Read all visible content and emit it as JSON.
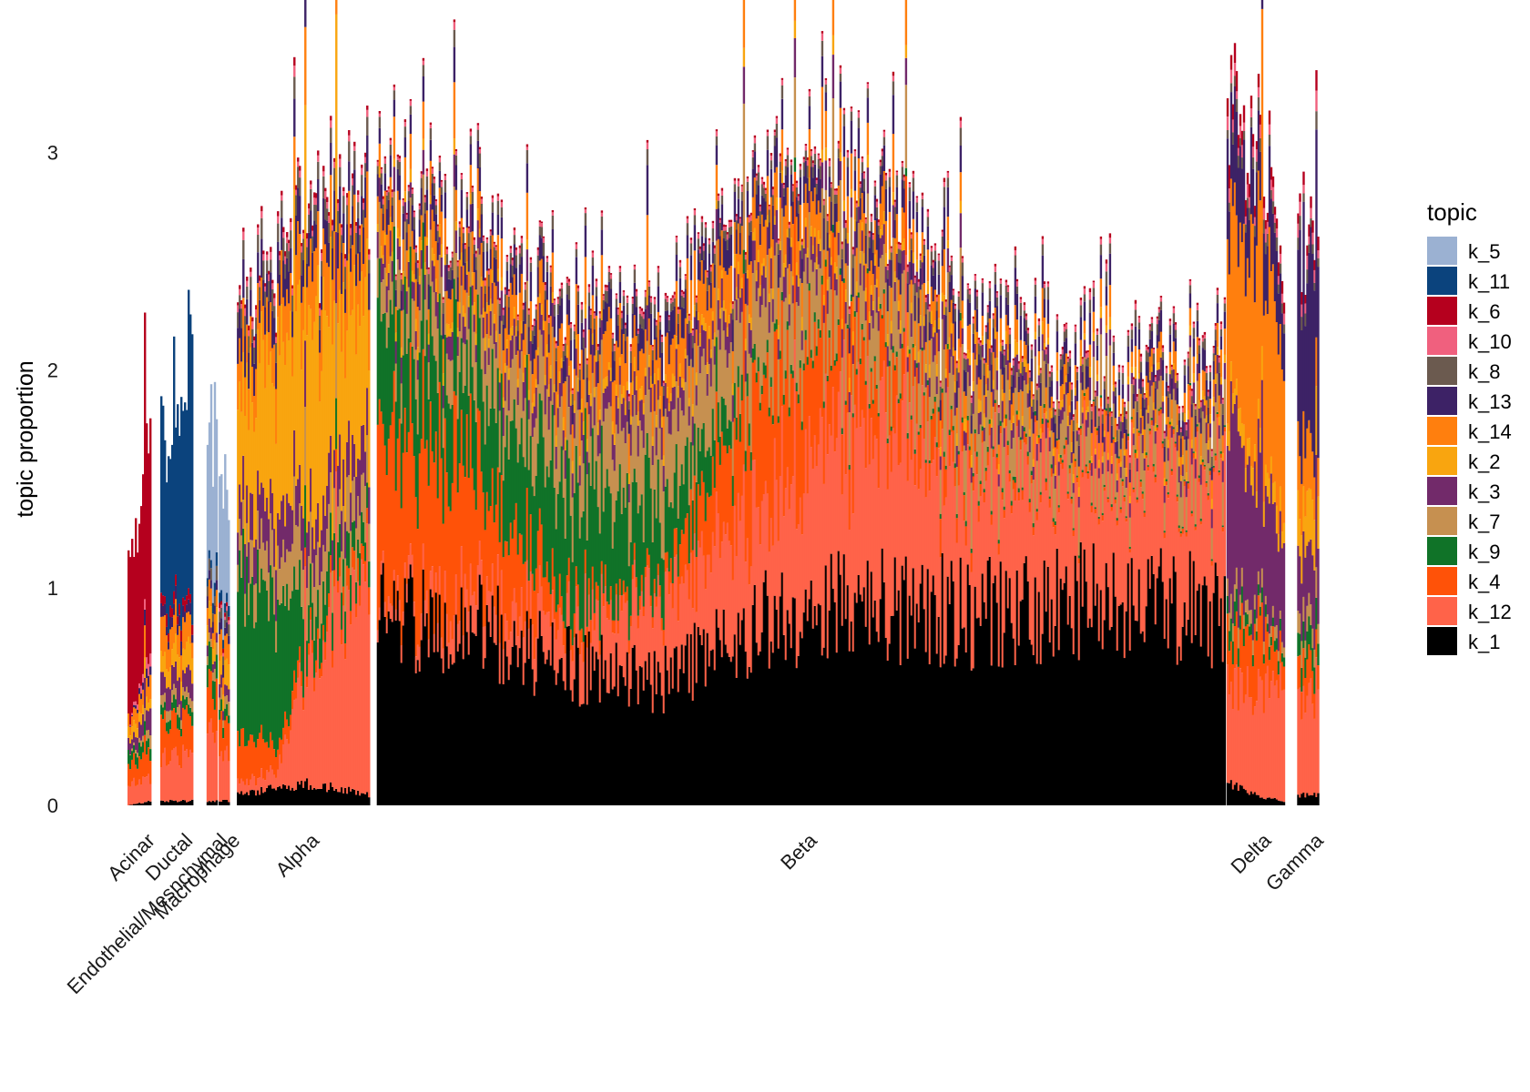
{
  "chart_data": {
    "type": "bar",
    "subtype": "stacked-bar-structure-plot",
    "title": "",
    "xlabel": "",
    "ylabel": "topic proportion",
    "ylim": [
      0,
      3.45
    ],
    "y_ticks": [
      "0",
      "1",
      "2",
      "3"
    ],
    "y_tick_values": [
      0,
      1,
      2,
      3
    ],
    "grid": false,
    "legend_title": "topic",
    "legend_position": "right",
    "legend": [
      {
        "name": "k_5",
        "color": "#9BB1D2"
      },
      {
        "name": "k_11",
        "color": "#0B437D"
      },
      {
        "name": "k_6",
        "color": "#B5001E"
      },
      {
        "name": "k_10",
        "color": "#F0607E"
      },
      {
        "name": "k_8",
        "color": "#6B5A4F"
      },
      {
        "name": "k_13",
        "color": "#3D2266"
      },
      {
        "name": "k_14",
        "color": "#FF7F0E"
      },
      {
        "name": "k_2",
        "color": "#F9A50F"
      },
      {
        "name": "k_3",
        "color": "#722A6A"
      },
      {
        "name": "k_7",
        "color": "#C69050"
      },
      {
        "name": "k_9",
        "color": "#107328"
      },
      {
        "name": "k_4",
        "color": "#FF5208"
      },
      {
        "name": "k_12",
        "color": "#FF6349"
      },
      {
        "name": "k_1",
        "color": "#000000"
      }
    ],
    "categories": [
      "Acinar",
      "Ductal",
      "Endothelial/Mesnchymal",
      "Macrophage",
      "Alpha",
      "Beta",
      "Delta",
      "Gamma"
    ],
    "groups": [
      {
        "name": "Acinar",
        "x_start": 0.0,
        "x_end": 0.02,
        "profile": [
          {
            "x": 0,
            "v": [
              0,
              0,
              0.6,
              0,
              0,
              0,
              0.05,
              0.05,
              0.05,
              0,
              0.05,
              0.1,
              0.1,
              0
            ]
          },
          {
            "x": 1,
            "v": [
              0,
              0,
              1.2,
              0.05,
              0,
              0.05,
              0.1,
              0.05,
              0.1,
              0.05,
              0.05,
              0.1,
              0.1,
              0.02
            ]
          }
        ]
      },
      {
        "name": "Ductal",
        "x_start": 0.027,
        "x_end": 0.055,
        "profile": [
          {
            "x": 0,
            "v": [
              0,
              0.7,
              0.05,
              0,
              0,
              0.05,
              0.15,
              0.1,
              0.1,
              0.05,
              0.05,
              0.2,
              0.2,
              0.02
            ]
          },
          {
            "x": 1,
            "v": [
              0,
              1.2,
              0.05,
              0,
              0,
              0.05,
              0.1,
              0.1,
              0.1,
              0.05,
              0.05,
              0.15,
              0.2,
              0.02
            ]
          }
        ]
      },
      {
        "name": "Endothelial/Mesnchymal",
        "x_start": 0.065,
        "x_end": 0.075,
        "profile": [
          {
            "x": 0,
            "v": [
              0.8,
              0.05,
              0,
              0,
              0.05,
              0.05,
              0.1,
              0.1,
              0.05,
              0.05,
              0.1,
              0.2,
              0.3,
              0.02
            ]
          },
          {
            "x": 1,
            "v": [
              0.7,
              0.05,
              0,
              0,
              0.05,
              0.05,
              0.1,
              0.1,
              0.05,
              0.05,
              0.1,
              0.2,
              0.3,
              0.02
            ]
          }
        ]
      },
      {
        "name": "Macrophage",
        "x_start": 0.075,
        "x_end": 0.085,
        "profile": [
          {
            "x": 0,
            "v": [
              0.6,
              0.05,
              0.02,
              0.02,
              0.05,
              0.05,
              0.1,
              0.1,
              0.05,
              0.05,
              0.05,
              0.15,
              0.2,
              0.02
            ]
          },
          {
            "x": 1,
            "v": [
              0.5,
              0.05,
              0.02,
              0.02,
              0.05,
              0.05,
              0.1,
              0.1,
              0.05,
              0.05,
              0.05,
              0.15,
              0.2,
              0.02
            ]
          }
        ]
      },
      {
        "name": "Alpha",
        "x_start": 0.09,
        "x_end": 0.2,
        "profile": [
          {
            "x": 0.0,
            "v": [
              0,
              0,
              0.02,
              0.03,
              0.08,
              0.15,
              0.2,
              0.5,
              0.2,
              0.15,
              0.8,
              0.25,
              0.05,
              0.05
            ]
          },
          {
            "x": 0.3,
            "v": [
              0,
              0,
              0.02,
              0.03,
              0.08,
              0.15,
              0.2,
              0.7,
              0.2,
              0.2,
              0.6,
              0.1,
              0.08,
              0.08
            ]
          },
          {
            "x": 0.55,
            "v": [
              0,
              0,
              0.02,
              0.03,
              0.08,
              0.15,
              0.25,
              0.9,
              0.2,
              0.25,
              0.2,
              0.05,
              0.6,
              0.1
            ]
          },
          {
            "x": 1.0,
            "v": [
              0,
              0,
              0.02,
              0.03,
              0.08,
              0.15,
              0.25,
              0.6,
              0.2,
              0.2,
              0.1,
              0.1,
              1.0,
              0.05
            ]
          }
        ]
      },
      {
        "name": "Beta",
        "x_start": 0.205,
        "x_end": 0.904,
        "profile": [
          {
            "x": 0.0,
            "v": [
              0,
              0,
              0.01,
              0.02,
              0.05,
              0.1,
              0.15,
              0.05,
              0.1,
              0.2,
              0.55,
              0.75,
              0.05,
              0.87
            ]
          },
          {
            "x": 0.1,
            "v": [
              0,
              0,
              0.01,
              0.02,
              0.05,
              0.1,
              0.15,
              0.05,
              0.1,
              0.25,
              0.4,
              0.65,
              0.15,
              0.85
            ]
          },
          {
            "x": 0.22,
            "v": [
              0,
              0,
              0.01,
              0.02,
              0.05,
              0.12,
              0.2,
              0.05,
              0.12,
              0.3,
              0.55,
              0.1,
              0.2,
              0.65
            ]
          },
          {
            "x": 0.33,
            "v": [
              0,
              0,
              0.01,
              0.02,
              0.05,
              0.12,
              0.2,
              0.05,
              0.12,
              0.35,
              0.4,
              0.05,
              0.35,
              0.55
            ]
          },
          {
            "x": 0.45,
            "v": [
              0,
              0,
              0.01,
              0.02,
              0.05,
              0.12,
              0.2,
              0.05,
              0.12,
              0.35,
              0.05,
              0.6,
              0.55,
              0.85
            ]
          },
          {
            "x": 0.58,
            "v": [
              0,
              0,
              0.01,
              0.02,
              0.05,
              0.12,
              0.15,
              0.05,
              0.1,
              0.3,
              0.02,
              0.3,
              0.85,
              0.92
            ]
          },
          {
            "x": 0.72,
            "v": [
              0,
              0,
              0.01,
              0.02,
              0.05,
              0.1,
              0.1,
              0.05,
              0.08,
              0.25,
              0.02,
              0.05,
              0.6,
              0.88
            ]
          },
          {
            "x": 0.86,
            "v": [
              0,
              0,
              0.01,
              0.02,
              0.04,
              0.08,
              0.08,
              0.03,
              0.06,
              0.15,
              0.01,
              0.02,
              0.55,
              0.95
            ]
          },
          {
            "x": 1.0,
            "v": [
              0,
              0,
              0.01,
              0.02,
              0.04,
              0.08,
              0.1,
              0.04,
              0.08,
              0.2,
              0.01,
              0.02,
              0.6,
              0.88
            ]
          }
        ]
      },
      {
        "name": "Delta",
        "x_start": 0.904,
        "x_end": 0.952,
        "profile": [
          {
            "x": 0.0,
            "v": [
              0,
              0,
              0.1,
              0.05,
              0.05,
              0.4,
              0.9,
              0.1,
              0.8,
              0.1,
              0.1,
              0.2,
              0.5,
              0.1
            ]
          },
          {
            "x": 0.5,
            "v": [
              0,
              0,
              0.05,
              0.05,
              0.05,
              0.3,
              0.9,
              0.1,
              0.6,
              0.05,
              0.05,
              0.3,
              0.5,
              0.05
            ]
          },
          {
            "x": 1.0,
            "v": [
              0,
              0,
              0.05,
              0.05,
              0.05,
              0.3,
              0.9,
              0.1,
              0.5,
              0.05,
              0.05,
              0.1,
              0.5,
              0.02
            ]
          }
        ]
      },
      {
        "name": "Gamma",
        "x_start": 0.962,
        "x_end": 0.98,
        "profile": [
          {
            "x": 0,
            "v": [
              0,
              0,
              0.05,
              0.05,
              0.05,
              0.8,
              0.3,
              0.2,
              0.3,
              0.1,
              0.1,
              0.2,
              0.4,
              0.05
            ]
          },
          {
            "x": 1,
            "v": [
              0,
              0,
              0.05,
              0.05,
              0.05,
              0.9,
              0.2,
              0.2,
              0.3,
              0.1,
              0.1,
              0.1,
              0.5,
              0.05
            ]
          }
        ]
      }
    ]
  }
}
